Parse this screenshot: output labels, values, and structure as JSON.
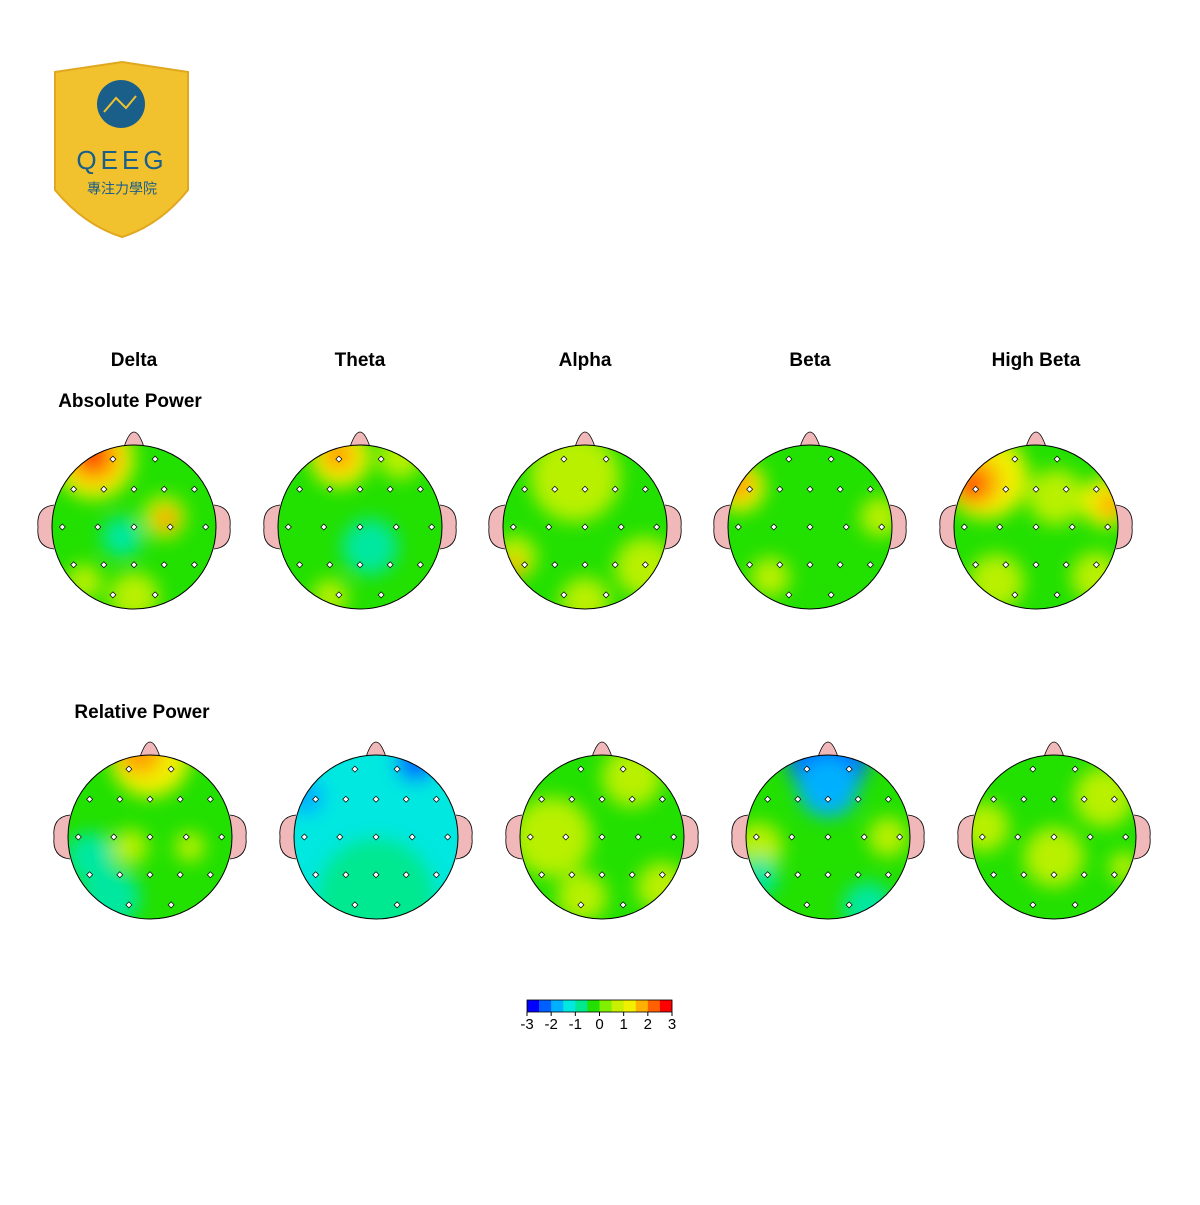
{
  "logo": {
    "title": "QEEG",
    "subtitle": "專注力學院"
  },
  "bands": [
    "Delta",
    "Theta",
    "Alpha",
    "Beta",
    "High Beta"
  ],
  "rows": [
    "Absolute Power",
    "Relative Power"
  ],
  "colorbar": {
    "ticks": [
      -3,
      -2,
      -1,
      0,
      1,
      2,
      3
    ],
    "colors": [
      "#0000ff",
      "#0060ff",
      "#00b0ff",
      "#00e8e0",
      "#00e890",
      "#22e000",
      "#80f000",
      "#c8f000",
      "#f0f000",
      "#ffb000",
      "#ff6000",
      "#ff0000"
    ]
  }
}
